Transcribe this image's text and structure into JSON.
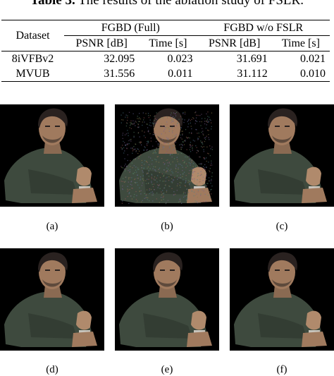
{
  "caption": {
    "label": "Table 3.",
    "text": "The results of the ablation study of FSLR."
  },
  "table": {
    "row_header": "Dataset",
    "groups": [
      "FGBD (Full)",
      "FGBD w/o FSLR"
    ],
    "subheaders": [
      "PSNR [dB]",
      "Time [s]",
      "PSNR [dB]",
      "Time [s]"
    ],
    "rows": [
      {
        "dataset": "8iVFBv2",
        "values": [
          "32.095",
          "0.023",
          "31.691",
          "0.021"
        ]
      },
      {
        "dataset": "MVUB",
        "values": [
          "31.556",
          "0.011",
          "31.112",
          "0.010"
        ]
      }
    ]
  },
  "figure": {
    "panels": [
      {
        "label": "(a)",
        "noise": 0.0
      },
      {
        "label": "(b)",
        "noise": 1.0
      },
      {
        "label": "(c)",
        "noise": 0.0
      },
      {
        "label": "(d)",
        "noise": 0.0
      },
      {
        "label": "(e)",
        "noise": 0.0
      },
      {
        "label": "(f)",
        "noise": 0.0
      }
    ]
  }
}
